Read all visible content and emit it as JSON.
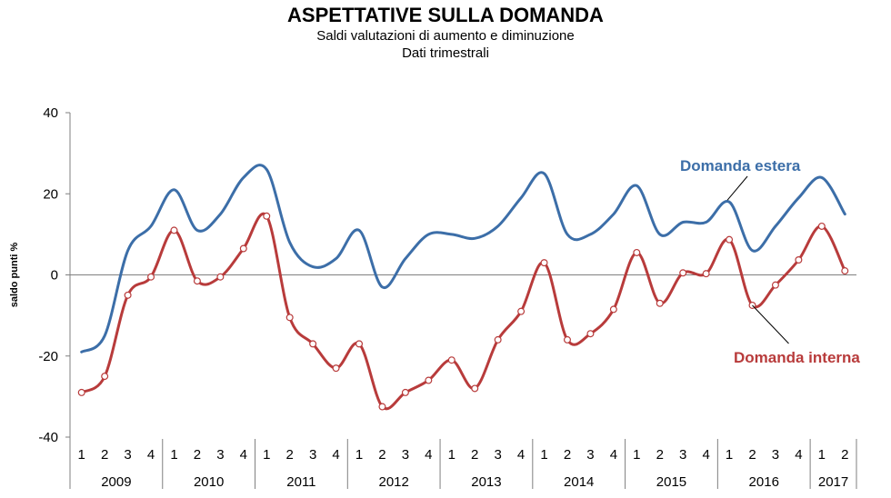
{
  "chart_data": {
    "type": "line",
    "title": "ASPETTATIVE SULLA DOMANDA",
    "subtitle": [
      "Saldi valutazioni di aumento e diminuzione",
      "Dati trimestrali"
    ],
    "ylabel": "saldo punti %",
    "ylim": [
      -40,
      40
    ],
    "yticks": [
      -40,
      -20,
      0,
      20,
      40
    ],
    "reference_line": 0,
    "grid": false,
    "x_quarters": [
      "1",
      "2",
      "3",
      "4",
      "1",
      "2",
      "3",
      "4",
      "1",
      "2",
      "3",
      "4",
      "1",
      "2",
      "3",
      "4",
      "1",
      "2",
      "3",
      "4",
      "1",
      "2",
      "3",
      "4",
      "1",
      "2",
      "3",
      "4",
      "1",
      "2",
      "3",
      "4",
      "1",
      "2"
    ],
    "x_years": [
      {
        "label": "2009",
        "quarters": 4
      },
      {
        "label": "2010",
        "quarters": 4
      },
      {
        "label": "2011",
        "quarters": 4
      },
      {
        "label": "2012",
        "quarters": 4
      },
      {
        "label": "2013",
        "quarters": 4
      },
      {
        "label": "2014",
        "quarters": 4
      },
      {
        "label": "2015",
        "quarters": 4
      },
      {
        "label": "2016",
        "quarters": 4
      },
      {
        "label": "2017",
        "quarters": 2
      }
    ],
    "series": [
      {
        "name": "Domanda estera",
        "color": "#3c6ea8",
        "markers": false,
        "values": [
          -19,
          -15,
          6,
          12,
          21,
          11,
          15,
          24,
          26,
          8,
          2,
          4,
          11,
          -3,
          4,
          10,
          10,
          9,
          12,
          19,
          25,
          10,
          10,
          15,
          22,
          10,
          13,
          13,
          18,
          6,
          12,
          19,
          24,
          15
        ]
      },
      {
        "name": "Domanda interna",
        "color": "#b83b3b",
        "markers": true,
        "values": [
          -29,
          -25,
          -5,
          -0.5,
          11,
          -1.5,
          -0.5,
          6.5,
          14.5,
          -10.5,
          -17,
          -23,
          -17,
          -32.5,
          -29,
          -26,
          -21,
          -28,
          -16,
          -9,
          3,
          -16,
          -14.5,
          -8.5,
          5.5,
          -7,
          0.5,
          0.3,
          8.7,
          -7.5,
          -2.5,
          3.7,
          12,
          1
        ]
      }
    ]
  }
}
